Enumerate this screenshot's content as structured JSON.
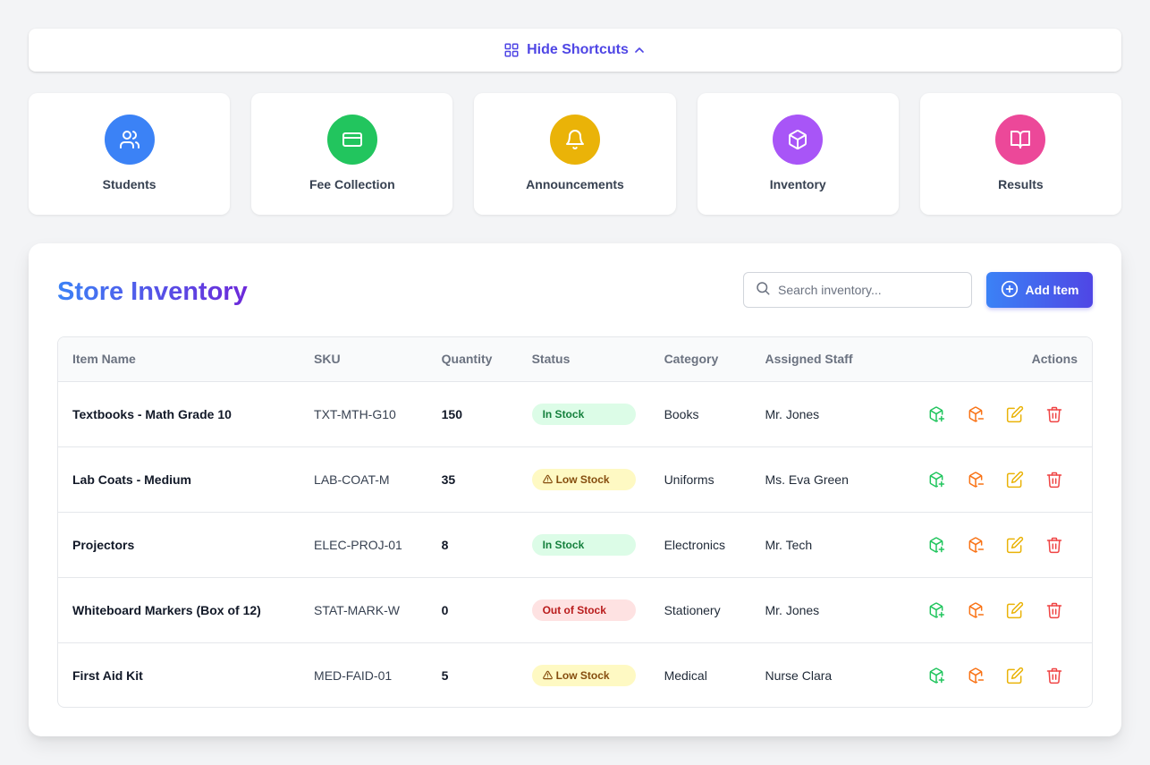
{
  "toggle": {
    "label": "Hide Shortcuts"
  },
  "shortcuts": [
    {
      "label": "Students",
      "color": "#3b82f6",
      "icon": "users-icon"
    },
    {
      "label": "Fee Collection",
      "color": "#22c55e",
      "icon": "credit-card-icon"
    },
    {
      "label": "Announcements",
      "color": "#eab308",
      "icon": "bell-icon"
    },
    {
      "label": "Inventory",
      "color": "#a855f7",
      "icon": "package-icon"
    },
    {
      "label": "Results",
      "color": "#ec4899",
      "icon": "book-open-icon"
    }
  ],
  "inventory": {
    "title": "Store Inventory",
    "search_placeholder": "Search inventory...",
    "add_label": "Add Item",
    "columns": {
      "name": "Item Name",
      "sku": "SKU",
      "quantity": "Quantity",
      "status": "Status",
      "category": "Category",
      "staff": "Assigned Staff",
      "actions": "Actions"
    },
    "rows": [
      {
        "name": "Textbooks - Math Grade 10",
        "sku": "TXT-MTH-G10",
        "quantity": "150",
        "status": "In Stock",
        "status_type": "in",
        "category": "Books",
        "staff": "Mr. Jones"
      },
      {
        "name": "Lab Coats - Medium",
        "sku": "LAB-COAT-M",
        "quantity": "35",
        "status": "Low Stock",
        "status_type": "low",
        "category": "Uniforms",
        "staff": "Ms. Eva Green"
      },
      {
        "name": "Projectors",
        "sku": "ELEC-PROJ-01",
        "quantity": "8",
        "status": "In Stock",
        "status_type": "in",
        "category": "Electronics",
        "staff": "Mr. Tech"
      },
      {
        "name": "Whiteboard Markers (Box of 12)",
        "sku": "STAT-MARK-W",
        "quantity": "0",
        "status": "Out of Stock",
        "status_type": "out",
        "category": "Stationery",
        "staff": "Mr. Jones"
      },
      {
        "name": "First Aid Kit",
        "sku": "MED-FAID-01",
        "quantity": "5",
        "status": "Low Stock",
        "status_type": "low",
        "category": "Medical",
        "staff": "Nurse Clara"
      }
    ]
  },
  "colors": {
    "accent": "#4f46e5",
    "stock_in_icon": "#22c55e",
    "stock_out_icon": "#f97316",
    "edit_icon": "#eab308",
    "delete_icon": "#ef4444"
  }
}
